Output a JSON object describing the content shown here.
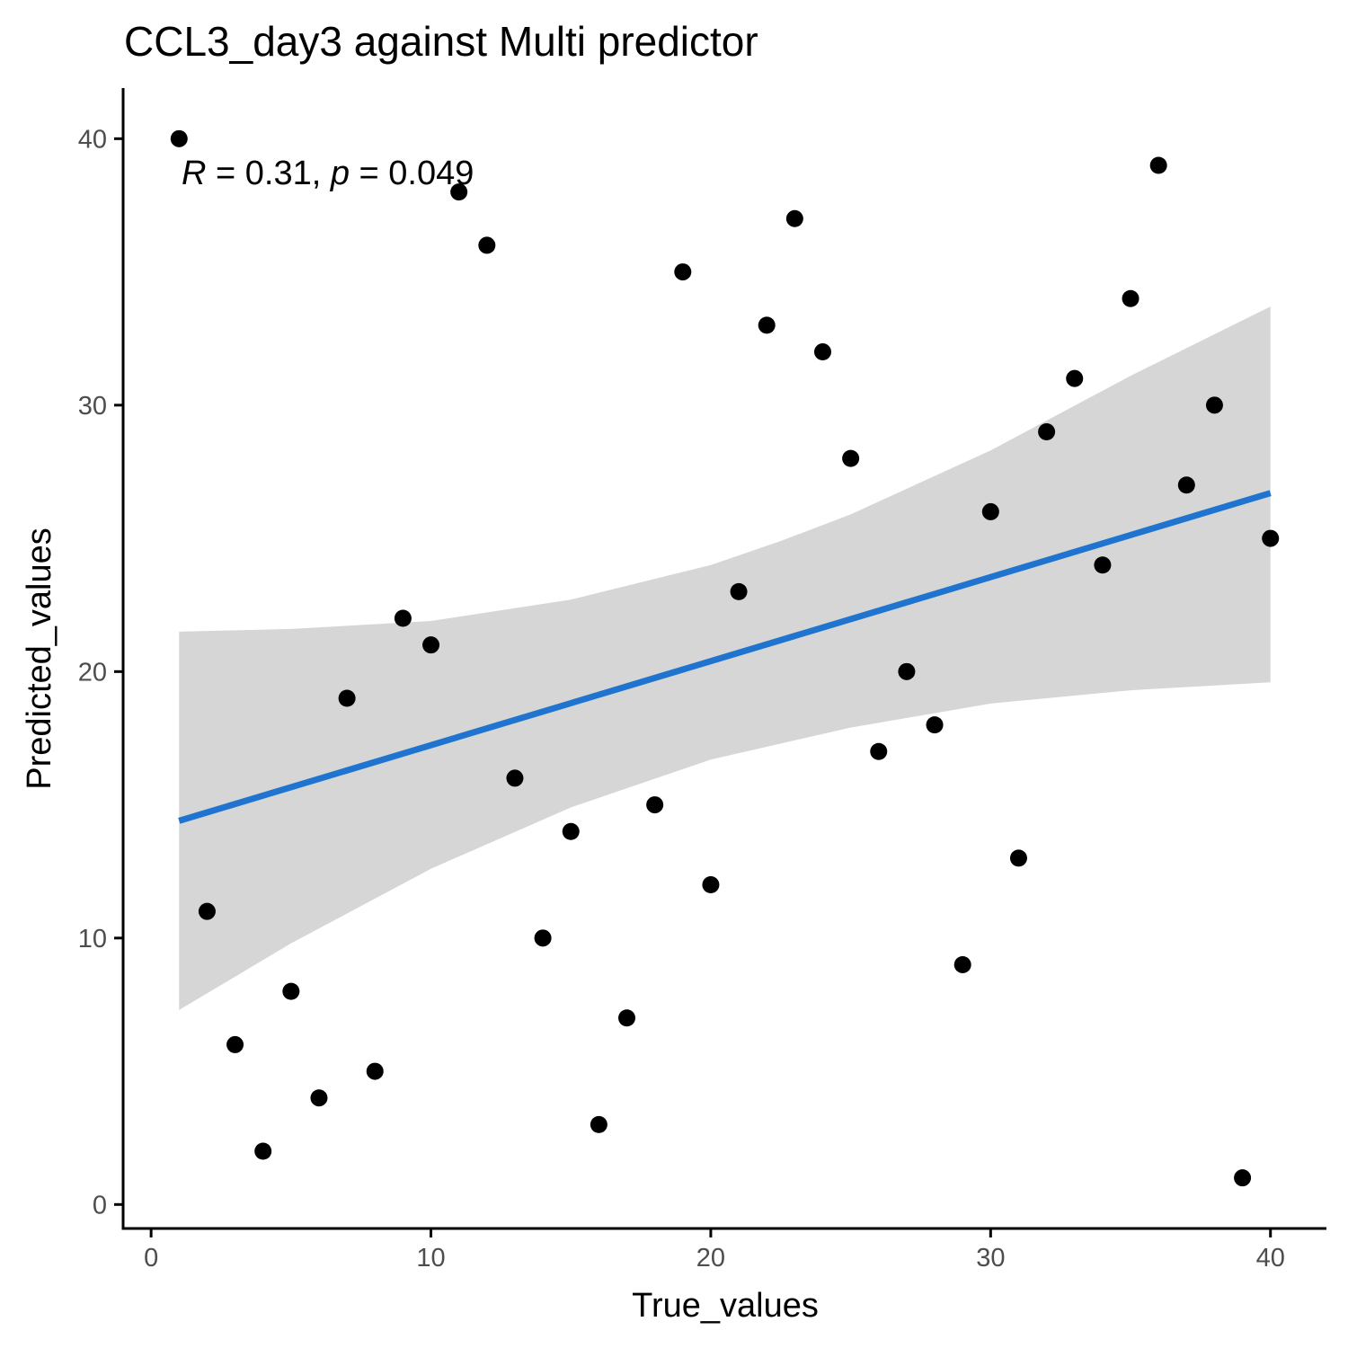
{
  "chart_data": {
    "type": "scatter",
    "title": "CCL3_day3 against Multi predictor",
    "xlabel": "True_values",
    "ylabel": "Predicted_values",
    "xlim": [
      -1,
      42
    ],
    "ylim": [
      -0.9,
      41.9
    ],
    "xticks": [
      0,
      10,
      20,
      30,
      40
    ],
    "yticks": [
      0,
      10,
      20,
      30,
      40
    ],
    "grid": false,
    "legend": "none",
    "annotation": {
      "r_symbol": "R",
      "r_text": " = 0.31, ",
      "p_symbol": "p",
      "p_text": " = 0.049"
    },
    "points": {
      "x": [
        1,
        2,
        3,
        4,
        5,
        6,
        7,
        8,
        9,
        10,
        11,
        12,
        13,
        14,
        15,
        16,
        17,
        18,
        19,
        20,
        21,
        22,
        23,
        24,
        25,
        26,
        27,
        28,
        29,
        30,
        31,
        32,
        33,
        34,
        35,
        36,
        37,
        38,
        39,
        40
      ],
      "y": [
        40,
        11,
        6,
        2,
        8,
        4,
        19,
        5,
        22,
        21,
        38,
        36,
        16,
        10,
        14,
        3,
        7,
        15,
        35,
        12,
        23,
        33,
        37,
        32,
        28,
        17,
        20,
        18,
        9,
        26,
        13,
        29,
        31,
        24,
        34,
        39,
        27,
        30,
        1,
        25
      ]
    },
    "regression": {
      "x": [
        1,
        40
      ],
      "y": [
        14.4,
        26.7
      ]
    },
    "confidence_band": {
      "x": [
        1,
        5,
        10,
        15,
        20,
        22.5,
        25,
        30,
        35,
        40
      ],
      "lower": [
        7.3,
        9.8,
        12.6,
        14.9,
        16.7,
        17.3,
        17.9,
        18.8,
        19.3,
        19.6
      ],
      "upper": [
        21.5,
        21.6,
        21.9,
        22.7,
        24.0,
        24.9,
        25.9,
        28.3,
        31.1,
        33.7
      ]
    },
    "colors": {
      "points": "#000000",
      "line": "#1f74d0",
      "band": "#d6d6d6",
      "axis": "#000000",
      "tick_label": "#4d4d4d"
    }
  }
}
